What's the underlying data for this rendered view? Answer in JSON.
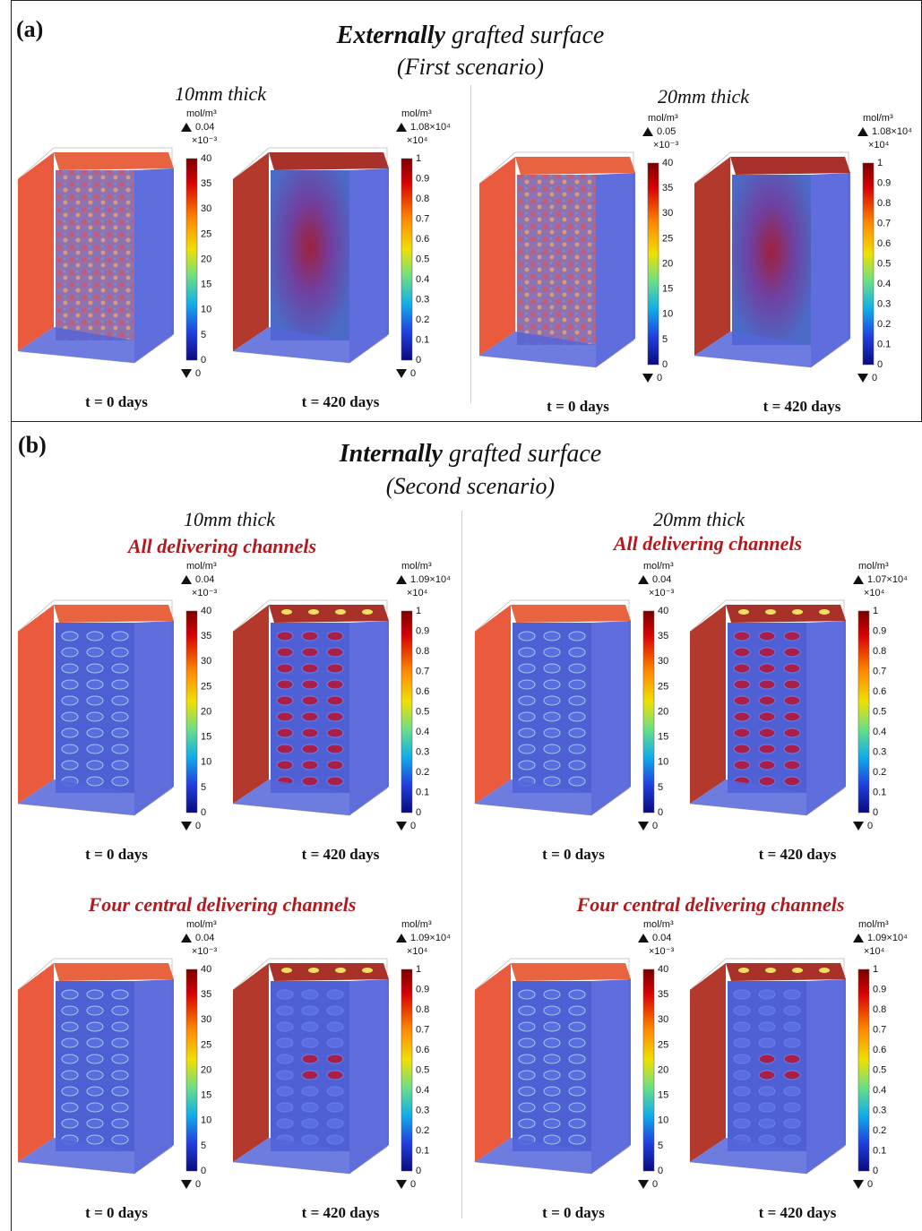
{
  "panels": [
    {
      "label": "(a)",
      "title_emphasis": "Externally",
      "title": "grafted surface",
      "subtitle": "(First scenario)",
      "columns": [
        {
          "heading": "10mm thick",
          "groups": [
            {
              "plots": [
                {
                  "unit": "mol/m³",
                  "max": "0.04",
                  "exponent": "×10⁻³",
                  "ticks": [
                    "0",
                    "5",
                    "10",
                    "15",
                    "20",
                    "25",
                    "30",
                    "35",
                    "40"
                  ],
                  "min": "0",
                  "caption": "t = 0 days"
                },
                {
                  "unit": "mol/m³",
                  "max": "1.08×10⁴",
                  "exponent": "×10⁴",
                  "ticks": [
                    "0",
                    "0.1",
                    "0.2",
                    "0.3",
                    "0.4",
                    "0.5",
                    "0.6",
                    "0.7",
                    "0.8",
                    "0.9",
                    "1"
                  ],
                  "min": "0",
                  "caption": "t = 420 days"
                }
              ]
            }
          ]
        },
        {
          "heading": "20mm thick",
          "groups": [
            {
              "plots": [
                {
                  "unit": "mol/m³",
                  "max": "0.05",
                  "exponent": "×10⁻³",
                  "ticks": [
                    "0",
                    "5",
                    "10",
                    "15",
                    "20",
                    "25",
                    "30",
                    "35",
                    "40"
                  ],
                  "min": "0",
                  "caption": "t = 0 days"
                },
                {
                  "unit": "mol/m³",
                  "max": "1.08×10⁴",
                  "exponent": "×10⁴",
                  "ticks": [
                    "0",
                    "0.1",
                    "0.2",
                    "0.3",
                    "0.4",
                    "0.5",
                    "0.6",
                    "0.7",
                    "0.8",
                    "0.9",
                    "1"
                  ],
                  "min": "0",
                  "caption": "t = 420 days"
                }
              ]
            }
          ]
        }
      ]
    },
    {
      "label": "(b)",
      "title_emphasis": "Internally",
      "title": "grafted surface",
      "subtitle": "(Second scenario)",
      "columns": [
        {
          "heading": "10mm thick",
          "groups": [
            {
              "subheading": "All delivering channels",
              "plots": [
                {
                  "unit": "mol/m³",
                  "max": "0.04",
                  "exponent": "×10⁻³",
                  "ticks": [
                    "0",
                    "5",
                    "10",
                    "15",
                    "20",
                    "25",
                    "30",
                    "35",
                    "40"
                  ],
                  "min": "0",
                  "caption": "t = 0 days"
                },
                {
                  "unit": "mol/m³",
                  "max": "1.09×10⁴",
                  "exponent": "×10⁴",
                  "ticks": [
                    "0",
                    "0.1",
                    "0.2",
                    "0.3",
                    "0.4",
                    "0.5",
                    "0.6",
                    "0.7",
                    "0.8",
                    "0.9",
                    "1"
                  ],
                  "min": "0",
                  "caption": "t = 420 days"
                }
              ]
            },
            {
              "subheading": "Four central delivering channels",
              "plots": [
                {
                  "unit": "mol/m³",
                  "max": "0.04",
                  "exponent": "×10⁻³",
                  "ticks": [
                    "0",
                    "5",
                    "10",
                    "15",
                    "20",
                    "25",
                    "30",
                    "35",
                    "40"
                  ],
                  "min": "0",
                  "caption": "t = 0 days"
                },
                {
                  "unit": "mol/m³",
                  "max": "1.09×10⁴",
                  "exponent": "×10⁴",
                  "ticks": [
                    "0",
                    "0.1",
                    "0.2",
                    "0.3",
                    "0.4",
                    "0.5",
                    "0.6",
                    "0.7",
                    "0.8",
                    "0.9",
                    "1"
                  ],
                  "min": "0",
                  "caption": "t = 420 days"
                }
              ]
            }
          ]
        },
        {
          "heading": "20mm thick",
          "groups": [
            {
              "subheading": "All delivering channels",
              "plots": [
                {
                  "unit": "mol/m³",
                  "max": "0.04",
                  "exponent": "×10⁻³",
                  "ticks": [
                    "0",
                    "5",
                    "10",
                    "15",
                    "20",
                    "25",
                    "30",
                    "35",
                    "40"
                  ],
                  "min": "0",
                  "caption": "t = 0 days"
                },
                {
                  "unit": "mol/m³",
                  "max": "1.07×10⁴",
                  "exponent": "×10⁴",
                  "ticks": [
                    "0",
                    "0.1",
                    "0.2",
                    "0.3",
                    "0.4",
                    "0.5",
                    "0.6",
                    "0.7",
                    "0.8",
                    "0.9",
                    "1"
                  ],
                  "min": "0",
                  "caption": "t = 420 days"
                }
              ]
            },
            {
              "subheading": "Four central delivering channels",
              "plots": [
                {
                  "unit": "mol/m³",
                  "max": "0.04",
                  "exponent": "×10⁻³",
                  "ticks": [
                    "0",
                    "5",
                    "10",
                    "15",
                    "20",
                    "25",
                    "30",
                    "35",
                    "40"
                  ],
                  "min": "0",
                  "caption": "t = 0 days"
                },
                {
                  "unit": "mol/m³",
                  "max": "1.09×10⁴",
                  "exponent": "×10⁴",
                  "ticks": [
                    "0",
                    "0.1",
                    "0.2",
                    "0.3",
                    "0.4",
                    "0.5",
                    "0.6",
                    "0.7",
                    "0.8",
                    "0.9",
                    "1"
                  ],
                  "min": "0",
                  "caption": "t = 420 days"
                }
              ]
            }
          ]
        }
      ]
    }
  ]
}
